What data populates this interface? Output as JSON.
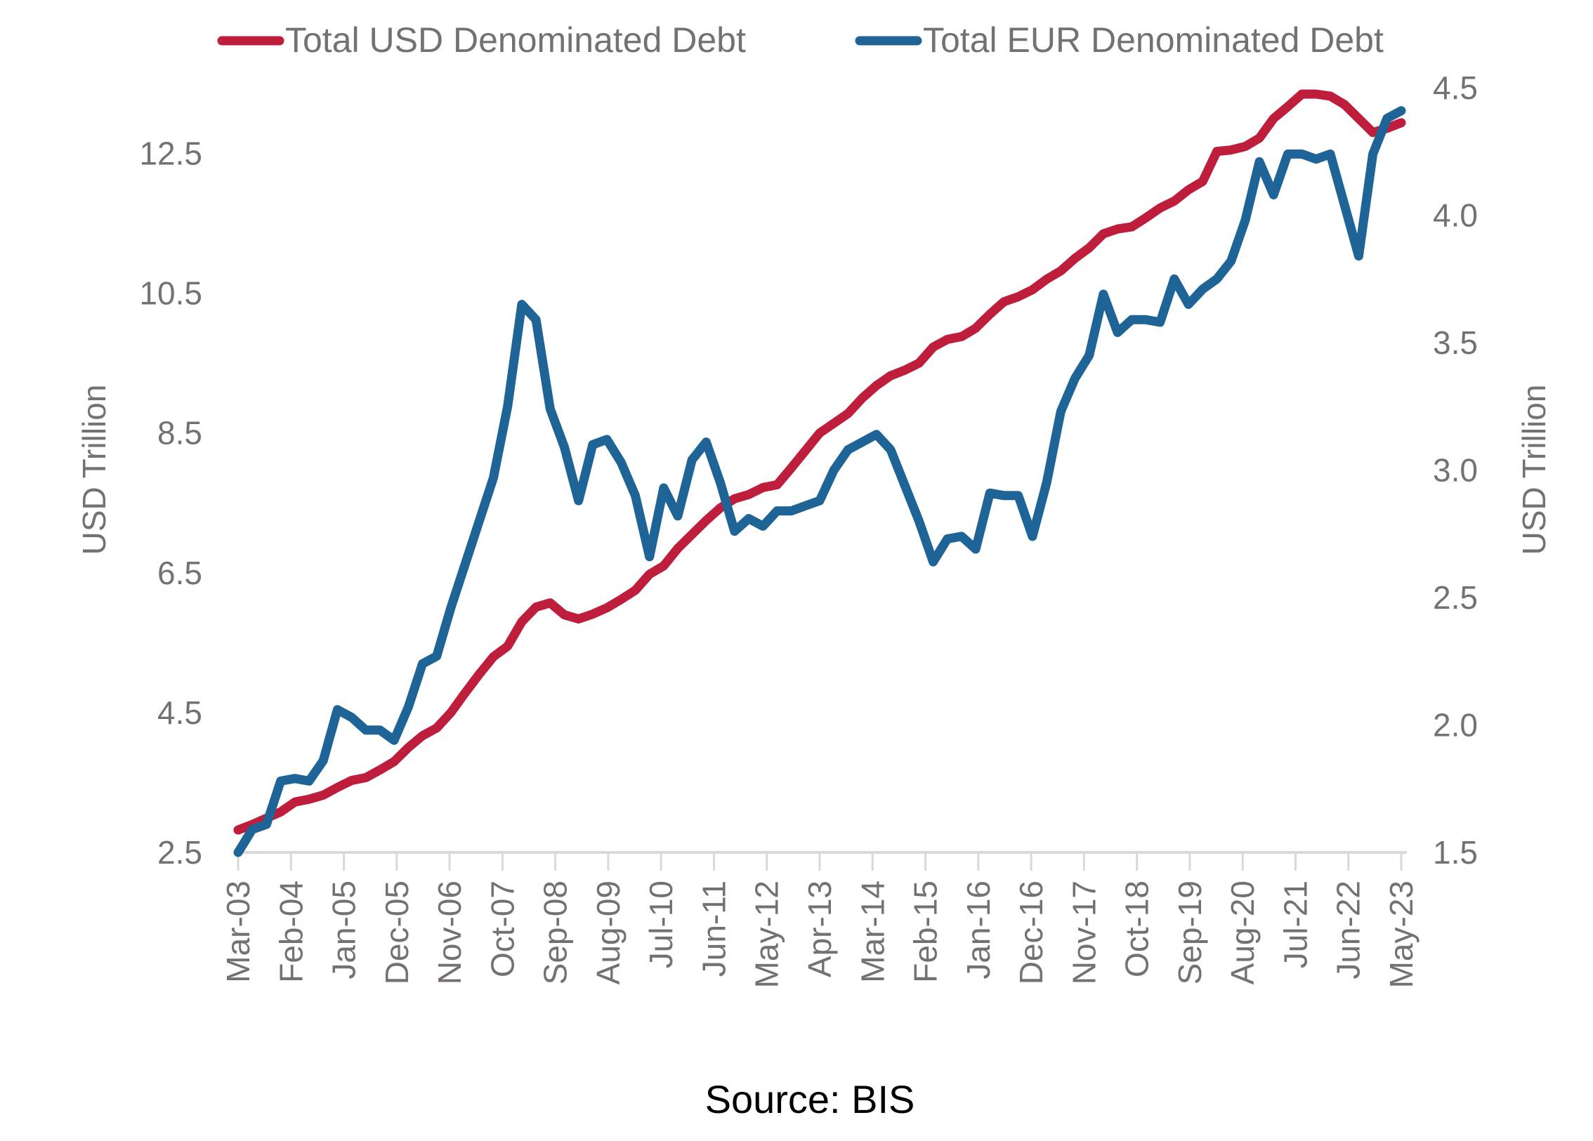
{
  "chart_data": {
    "type": "line",
    "title": "",
    "source": "Source: BIS",
    "xlabel": "",
    "ylabel_left": "USD Trillion",
    "ylabel_right": "USD Trillion",
    "x_tick_labels": [
      "Mar-03",
      "Feb-04",
      "Jan-05",
      "Dec-05",
      "Nov-06",
      "Oct-07",
      "Sep-08",
      "Aug-09",
      "Jul-10",
      "Jun-11",
      "May-12",
      "Apr-13",
      "Mar-14",
      "Feb-15",
      "Jan-16",
      "Dec-16",
      "Nov-17",
      "Oct-18",
      "Sep-19",
      "Aug-20",
      "Jul-21",
      "Jun-22",
      "May-23"
    ],
    "x_range": [
      "Mar-03",
      "May-23"
    ],
    "frequency": "quarterly",
    "ylim_left": [
      2.5,
      13.44
    ],
    "ylim_right": [
      1.5,
      4.5
    ],
    "y_ticks_left": [
      "2.5",
      "4.5",
      "6.5",
      "8.5",
      "10.5",
      "12.5"
    ],
    "y_ticks_right": [
      "1.5",
      "2.0",
      "2.5",
      "3.0",
      "3.5",
      "4.0",
      "4.5"
    ],
    "grid": false,
    "legend_position": "top",
    "series": [
      {
        "name": "Total USD Denominated Debt",
        "axis": "left",
        "color": "#be1e3c",
        "values": [
          2.82,
          2.9,
          2.99,
          3.08,
          3.22,
          3.26,
          3.32,
          3.43,
          3.53,
          3.57,
          3.68,
          3.8,
          4.0,
          4.17,
          4.28,
          4.5,
          4.78,
          5.05,
          5.3,
          5.45,
          5.8,
          6.01,
          6.07,
          5.9,
          5.84,
          5.91,
          6.0,
          6.12,
          6.25,
          6.48,
          6.6,
          6.85,
          7.05,
          7.25,
          7.43,
          7.56,
          7.62,
          7.72,
          7.76,
          8.0,
          8.25,
          8.5,
          8.64,
          8.78,
          9.0,
          9.18,
          9.32,
          9.4,
          9.5,
          9.73,
          9.84,
          9.88,
          10.0,
          10.2,
          10.38,
          10.45,
          10.55,
          10.7,
          10.82,
          11.0,
          11.15,
          11.35,
          11.42,
          11.45,
          11.58,
          11.72,
          11.82,
          11.98,
          12.1,
          12.53,
          12.55,
          12.6,
          12.72,
          13.0,
          13.17,
          13.35,
          13.35,
          13.32,
          13.2,
          13.0,
          12.8,
          12.86,
          12.94
        ]
      },
      {
        "name": "Total EUR Denominated Debt",
        "axis": "right",
        "color": "#1f6496",
        "values": [
          1.5,
          1.59,
          1.61,
          1.78,
          1.79,
          1.78,
          1.86,
          2.06,
          2.03,
          1.98,
          1.98,
          1.94,
          2.07,
          2.24,
          2.27,
          2.46,
          2.63,
          2.8,
          2.97,
          3.25,
          3.65,
          3.59,
          3.24,
          3.09,
          2.88,
          3.1,
          3.12,
          3.03,
          2.9,
          2.66,
          2.93,
          2.82,
          3.04,
          3.11,
          2.95,
          2.76,
          2.81,
          2.78,
          2.84,
          2.84,
          2.86,
          2.88,
          3.0,
          3.08,
          3.11,
          3.14,
          3.08,
          2.94,
          2.8,
          2.64,
          2.73,
          2.74,
          2.69,
          2.91,
          2.9,
          2.9,
          2.74,
          2.95,
          3.23,
          3.36,
          3.45,
          3.69,
          3.54,
          3.59,
          3.59,
          3.58,
          3.75,
          3.65,
          3.71,
          3.75,
          3.82,
          3.98,
          4.21,
          4.08,
          4.24,
          4.24,
          4.22,
          4.24,
          4.04,
          3.84,
          4.24,
          4.38,
          4.41
        ]
      }
    ]
  }
}
